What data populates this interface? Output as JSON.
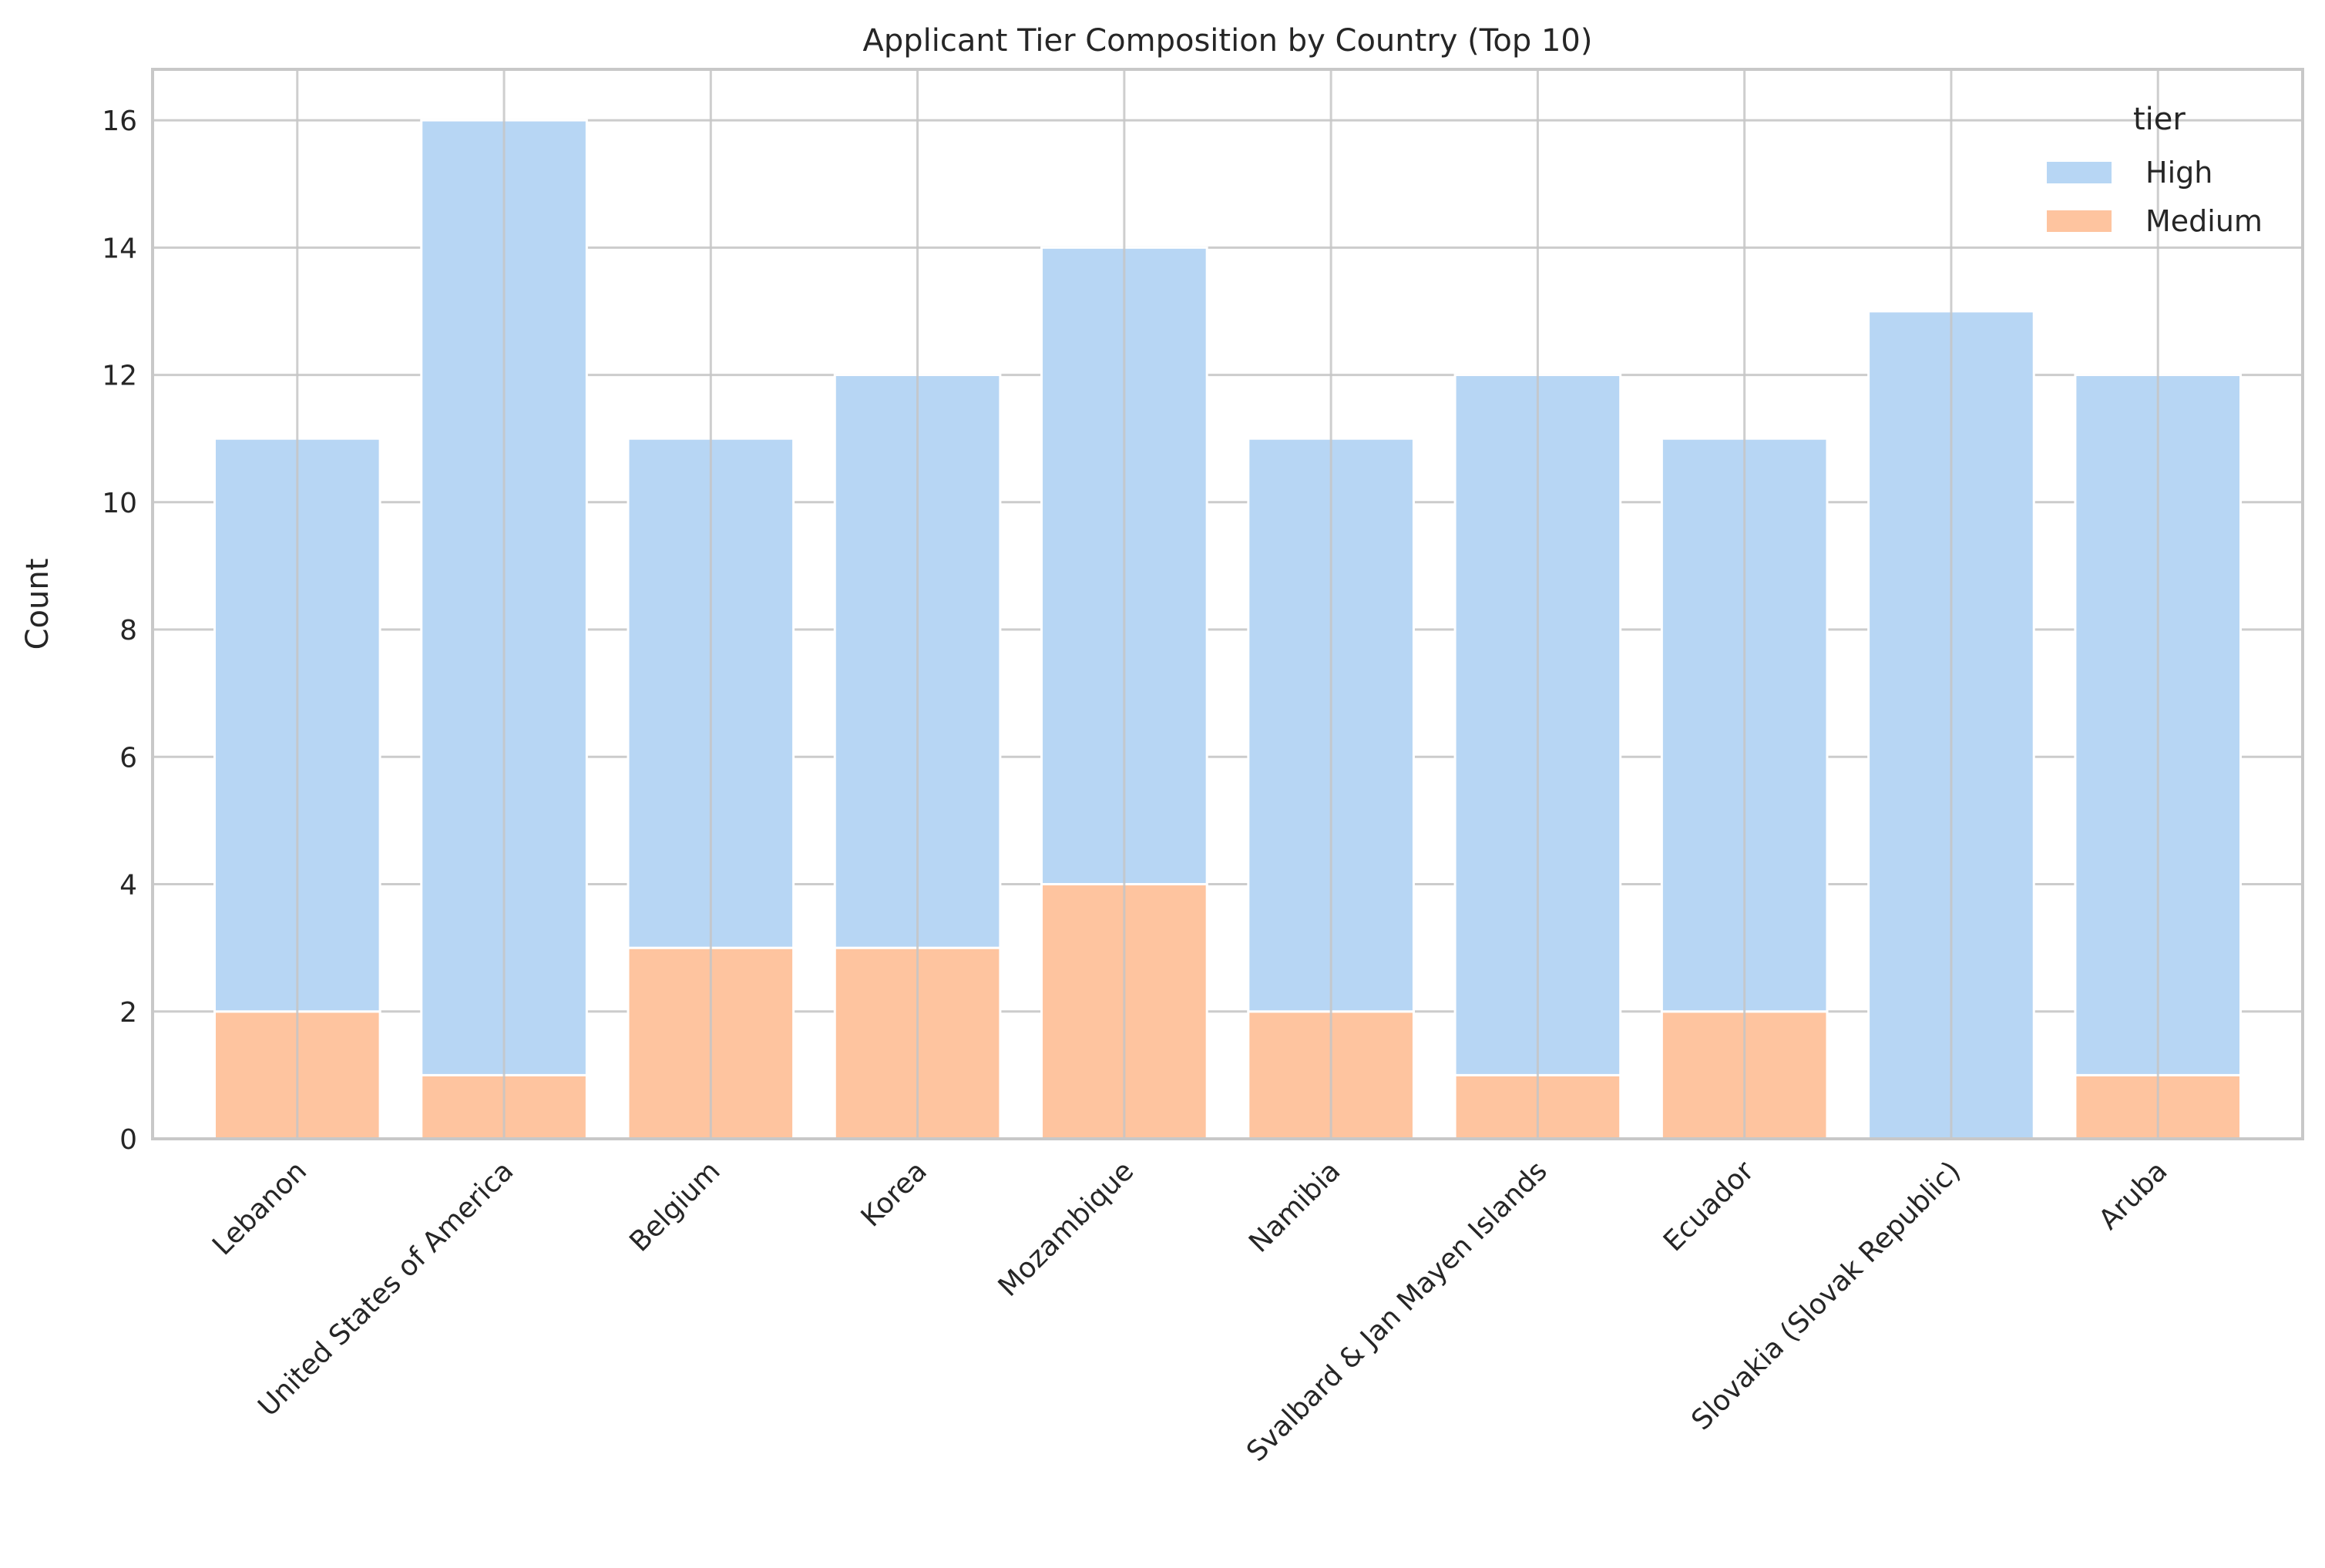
{
  "chart_data": {
    "type": "bar",
    "stacked": true,
    "title": "Applicant Tier Composition by Country (Top 10)",
    "xlabel": "",
    "ylabel": "Count",
    "ylim": [
      0,
      16.8
    ],
    "yticks": [
      0,
      2,
      4,
      6,
      8,
      10,
      12,
      14,
      16
    ],
    "grid": true,
    "categories": [
      "Lebanon",
      "United States of America",
      "Belgium",
      "Korea",
      "Mozambique",
      "Namibia",
      "Svalbard & Jan Mayen Islands",
      "Ecuador",
      "Slovakia (Slovak Republic)",
      "Aruba"
    ],
    "series": [
      {
        "name": "Medium",
        "color": "#fec49f",
        "values": [
          2,
          1,
          3,
          3,
          4,
          2,
          1,
          2,
          0,
          1
        ]
      },
      {
        "name": "High",
        "color": "#b7d6f4",
        "values": [
          9,
          15,
          8,
          9,
          10,
          9,
          11,
          9,
          13,
          11
        ]
      }
    ],
    "legend": {
      "title": "tier",
      "position": "top-right",
      "entries": [
        {
          "label": "High",
          "color": "#b7d6f4"
        },
        {
          "label": "Medium",
          "color": "#fec49f"
        }
      ]
    }
  }
}
